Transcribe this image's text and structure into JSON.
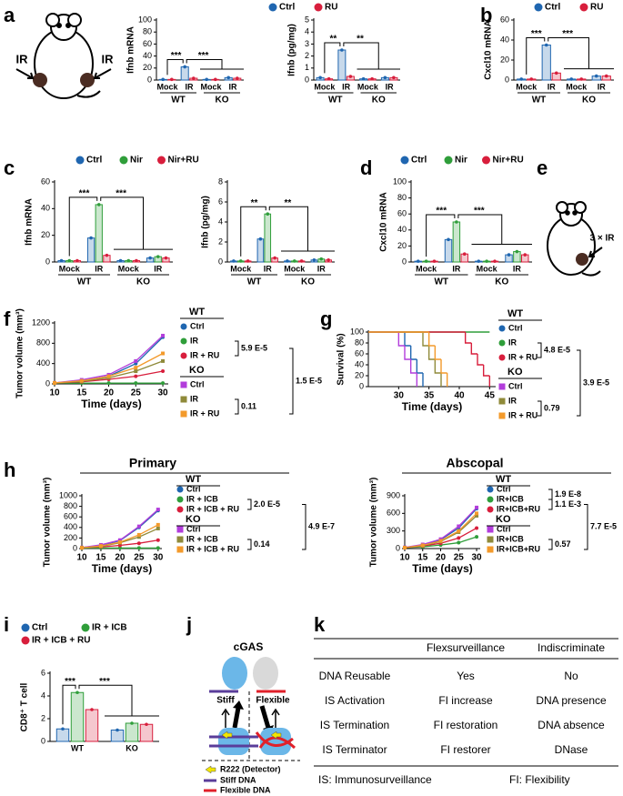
{
  "panel_labels": [
    "a",
    "b",
    "c",
    "d",
    "e",
    "f",
    "g",
    "h",
    "i",
    "j",
    "k"
  ],
  "mouse_a": {
    "left": "IR",
    "right": "IR"
  },
  "mouse_e": {
    "label": "3 × IR"
  },
  "chart_data": [
    {
      "type": "bar",
      "ylabel": "Ifnb mRNA",
      "categories": [
        "Mock",
        "IR",
        "Mock",
        "IR"
      ],
      "groups": [
        "WT",
        "KO"
      ],
      "series": [
        {
          "name": "Ctrl",
          "color": "#1f66b0",
          "values": [
            1,
            22,
            1,
            4
          ]
        },
        {
          "name": "RU",
          "color": "#d81e3c",
          "values": [
            1,
            3,
            1,
            3
          ]
        }
      ],
      "ylim": [
        0,
        100
      ],
      "yticks": [
        0,
        20,
        40,
        60,
        80,
        100
      ],
      "significance": [
        "***",
        "***"
      ]
    },
    {
      "type": "bar",
      "ylabel": "Ifnb (pg/mg)",
      "categories": [
        "Mock",
        "IR",
        "Mock",
        "IR"
      ],
      "groups": [
        "WT",
        "KO"
      ],
      "series": [
        {
          "color": "#1f66b0",
          "values": [
            0.2,
            2.5,
            0.1,
            0.2
          ]
        },
        {
          "color": "#d81e3c",
          "values": [
            0.1,
            0.3,
            0.1,
            0.2
          ]
        }
      ],
      "ylim": [
        0,
        5
      ],
      "yticks": [
        0,
        1,
        2,
        3,
        4,
        5
      ],
      "significance": [
        "**",
        "**"
      ]
    },
    {
      "type": "bar",
      "ylabel": "Cxcl10 mRNA",
      "categories": [
        "Mock",
        "IR",
        "Mock",
        "IR"
      ],
      "groups": [
        "WT",
        "KO"
      ],
      "series": [
        {
          "name": "Ctrl",
          "color": "#1f66b0",
          "values": [
            1,
            35,
            1,
            4
          ]
        },
        {
          "name": "RU",
          "color": "#d81e3c",
          "values": [
            1,
            7,
            1,
            4
          ]
        }
      ],
      "ylim": [
        0,
        60
      ],
      "yticks": [
        0,
        20,
        40,
        60
      ],
      "significance": [
        "***",
        "***"
      ]
    },
    {
      "type": "bar",
      "ylabel": "Ifnb mRNA",
      "categories": [
        "Mock",
        "IR",
        "Mock",
        "IR"
      ],
      "groups": [
        "WT",
        "KO"
      ],
      "series": [
        {
          "name": "Ctrl",
          "color": "#1f66b0",
          "values": [
            1,
            18,
            1,
            3
          ]
        },
        {
          "name": "Nir",
          "color": "#2f9e3a",
          "values": [
            1,
            43,
            1,
            4
          ]
        },
        {
          "name": "Nir+RU",
          "color": "#d81e3c",
          "values": [
            1,
            5,
            1,
            3
          ]
        }
      ],
      "ylim": [
        0,
        60
      ],
      "yticks": [
        0,
        20,
        40,
        60
      ],
      "significance": [
        "***",
        "***"
      ]
    },
    {
      "type": "bar",
      "ylabel": "Ifnb (pg/mg)",
      "categories": [
        "Mock",
        "IR",
        "Mock",
        "IR"
      ],
      "groups": [
        "WT",
        "KO"
      ],
      "series": [
        {
          "color": "#1f66b0",
          "values": [
            0.1,
            2.3,
            0.1,
            0.2
          ]
        },
        {
          "color": "#2f9e3a",
          "values": [
            0.1,
            4.8,
            0.1,
            0.3
          ]
        },
        {
          "color": "#d81e3c",
          "values": [
            0.1,
            0.4,
            0.1,
            0.2
          ]
        }
      ],
      "ylim": [
        0,
        8
      ],
      "yticks": [
        0,
        2,
        4,
        6,
        8
      ],
      "significance": [
        "**",
        "**"
      ]
    },
    {
      "type": "bar",
      "ylabel": "Cxcl10 mRNA",
      "categories": [
        "Mock",
        "IR",
        "Mock",
        "IR"
      ],
      "groups": [
        "WT",
        "KO"
      ],
      "series": [
        {
          "name": "Ctrl",
          "color": "#1f66b0",
          "values": [
            1,
            28,
            1,
            9
          ]
        },
        {
          "name": "Nir",
          "color": "#2f9e3a",
          "values": [
            1,
            50,
            1,
            13
          ]
        },
        {
          "name": "Nir+RU",
          "color": "#d81e3c",
          "values": [
            1,
            10,
            1,
            9
          ]
        }
      ],
      "ylim": [
        0,
        100
      ],
      "yticks": [
        0,
        20,
        40,
        60,
        80,
        100
      ],
      "significance": [
        "***",
        "***"
      ]
    },
    {
      "type": "line",
      "ylabel": "Tumor volume (mm³)",
      "xlabel": "Time (days)",
      "x": [
        10,
        15,
        20,
        25,
        30
      ],
      "xlim": [
        10,
        31
      ],
      "xticks": [
        10,
        15,
        20,
        25,
        30
      ],
      "ylim": [
        0,
        1200
      ],
      "yticks": [
        0,
        400,
        800,
        1200
      ],
      "groups": [
        {
          "name": "WT",
          "marker": "circle",
          "series": [
            {
              "name": "Ctrl",
              "color": "#1f66b0",
              "values": [
                20,
                60,
                150,
                400,
                920
              ]
            },
            {
              "name": "IR",
              "color": "#2f9e3a",
              "values": [
                15,
                15,
                15,
                15,
                15
              ]
            },
            {
              "name": "IR + RU",
              "color": "#d81e3c",
              "values": [
                15,
                40,
                90,
                150,
                250
              ]
            }
          ]
        },
        {
          "name": "KO",
          "marker": "square",
          "series": [
            {
              "name": "Ctrl",
              "color": "#b23ddb",
              "values": [
                20,
                80,
                180,
                450,
                950
              ]
            },
            {
              "name": "IR",
              "color": "#8f8a3a",
              "values": [
                15,
                50,
                120,
                250,
                450
              ]
            },
            {
              "name": "IR + RU",
              "color": "#f39a2b",
              "values": [
                20,
                60,
                150,
                320,
                600
              ]
            }
          ]
        }
      ],
      "p_values": [
        "5.9 E-5",
        "1.5 E-5",
        "0.11"
      ]
    },
    {
      "type": "step",
      "ylabel": "Survival (%)",
      "xlabel": "Time (days)",
      "xlim": [
        25,
        46
      ],
      "xticks": [
        30,
        35,
        40,
        45
      ],
      "ylim": [
        0,
        100
      ],
      "yticks": [
        0,
        20,
        40,
        60,
        80,
        100
      ],
      "groups": [
        {
          "name": "WT",
          "marker": "circle",
          "series": [
            {
              "name": "Ctrl",
              "color": "#1f66b0",
              "x": [
                25,
                31,
                32,
                33,
                34
              ],
              "values": [
                100,
                75,
                50,
                25,
                0
              ]
            },
            {
              "name": "IR",
              "color": "#2f9e3a",
              "x": [
                25,
                45
              ],
              "values": [
                100,
                100
              ]
            },
            {
              "name": "IR + RU",
              "color": "#d81e3c",
              "x": [
                25,
                41,
                42,
                43,
                44,
                45
              ],
              "values": [
                100,
                80,
                60,
                40,
                20,
                0
              ]
            }
          ]
        },
        {
          "name": "KO",
          "marker": "square",
          "series": [
            {
              "name": "Ctrl",
              "color": "#b23ddb",
              "x": [
                25,
                30,
                31,
                32,
                33
              ],
              "values": [
                100,
                75,
                50,
                25,
                0
              ]
            },
            {
              "name": "IR",
              "color": "#8f8a3a",
              "x": [
                25,
                34,
                35,
                36,
                37
              ],
              "values": [
                100,
                75,
                50,
                25,
                0
              ]
            },
            {
              "name": "IR + RU",
              "color": "#f39a2b",
              "x": [
                25,
                35,
                36,
                37,
                38
              ],
              "values": [
                100,
                75,
                50,
                25,
                0
              ]
            }
          ]
        }
      ],
      "p_values": [
        "4.8 E-5",
        "3.9 E-5",
        "0.79"
      ]
    },
    {
      "type": "line",
      "title": "Primary",
      "ylabel": "Tumor volume (mm³)",
      "xlabel": "Time (days)",
      "x": [
        10,
        15,
        20,
        25,
        30
      ],
      "xlim": [
        10,
        31
      ],
      "xticks": [
        10,
        15,
        20,
        25,
        30
      ],
      "ylim": [
        0,
        1000
      ],
      "yticks": [
        0,
        200,
        400,
        600,
        800,
        1000
      ],
      "groups": [
        {
          "name": "WT",
          "marker": "circle",
          "series": [
            {
              "name": "Ctrl",
              "color": "#1f66b0",
              "values": [
                20,
                60,
                150,
                400,
                720
              ]
            },
            {
              "name": "IR + ICB",
              "color": "#2f9e3a",
              "values": [
                10,
                10,
                10,
                10,
                10
              ]
            },
            {
              "name": "IR + ICB + RU",
              "color": "#d81e3c",
              "values": [
                15,
                30,
                60,
                100,
                160
              ]
            }
          ]
        },
        {
          "name": "KO",
          "marker": "square",
          "series": [
            {
              "name": "Ctrl",
              "color": "#b23ddb",
              "values": [
                20,
                70,
                160,
                420,
                740
              ]
            },
            {
              "name": "IR + ICB",
              "color": "#8f8a3a",
              "values": [
                15,
                40,
                110,
                220,
                380
              ]
            },
            {
              "name": "IR + ICB + RU",
              "color": "#f39a2b",
              "values": [
                15,
                50,
                120,
                260,
                450
              ]
            }
          ]
        }
      ],
      "p_values": [
        "2.0 E-5",
        "4.9 E-7",
        "0.14"
      ]
    },
    {
      "type": "line",
      "title": "Abscopal",
      "ylabel": "Tumor volume (mm³)",
      "xlabel": "Time (days)",
      "x": [
        10,
        15,
        20,
        25,
        30
      ],
      "xlim": [
        10,
        31
      ],
      "xticks": [
        10,
        15,
        20,
        25,
        30
      ],
      "ylim": [
        0,
        900
      ],
      "yticks": [
        0,
        300,
        600,
        900
      ],
      "groups": [
        {
          "name": "WT",
          "marker": "circle",
          "series": [
            {
              "name": "Ctrl",
              "color": "#1f66b0",
              "values": [
                20,
                60,
                150,
                350,
                680
              ]
            },
            {
              "name": "IR+ICB",
              "color": "#2f9e3a",
              "values": [
                15,
                30,
                60,
                100,
                200
              ]
            },
            {
              "name": "IR+ICB+RU",
              "color": "#d81e3c",
              "values": [
                15,
                45,
                90,
                180,
                350
              ]
            }
          ]
        },
        {
          "name": "KO",
          "marker": "square",
          "series": [
            {
              "name": "Ctrl",
              "color": "#b23ddb",
              "values": [
                20,
                70,
                160,
                380,
                700
              ]
            },
            {
              "name": "IR+ICB",
              "color": "#8f8a3a",
              "values": [
                15,
                50,
                120,
                280,
                560
              ]
            },
            {
              "name": "IR+ICB+RU",
              "color": "#f39a2b",
              "values": [
                15,
                55,
                130,
                300,
                600
              ]
            }
          ]
        }
      ],
      "p_values": [
        "1.9 E-8",
        "1.1 E-3",
        "7.7 E-5",
        "0.57"
      ]
    },
    {
      "type": "bar",
      "ylabel": "CD8⁺ T cell",
      "categories": [
        "WT",
        "KO"
      ],
      "series": [
        {
          "name": "Ctrl",
          "color": "#1f66b0",
          "values": [
            1.1,
            1.0
          ]
        },
        {
          "name": "IR + ICB",
          "color": "#2f9e3a",
          "values": [
            4.3,
            1.6
          ]
        },
        {
          "name": "IR + ICB + RU",
          "color": "#d81e3c",
          "values": [
            2.8,
            1.5
          ]
        }
      ],
      "ylim": [
        0,
        6
      ],
      "yticks": [
        0,
        2,
        4,
        6
      ],
      "significance": [
        "***",
        "***"
      ]
    }
  ],
  "diagram_j": {
    "title": "cGAS",
    "left": "Stiff",
    "right": "Flexible",
    "legend": [
      "R222 (Detector)",
      "Stiff DNA",
      "Flexible DNA"
    ]
  },
  "table_k": {
    "header": [
      "Flexsurveillance",
      "Indiscriminate"
    ],
    "rows": [
      [
        "DNA Reusable",
        "Yes",
        "No"
      ],
      [
        "IS Activation",
        "FI increase",
        "DNA presence"
      ],
      [
        "IS Termination",
        "FI restoration",
        "DNA absence"
      ],
      [
        "IS Terminator",
        "FI restorer",
        "DNase"
      ]
    ],
    "footer": [
      "IS: Immunosurveillance",
      "FI: Flexibility"
    ]
  }
}
